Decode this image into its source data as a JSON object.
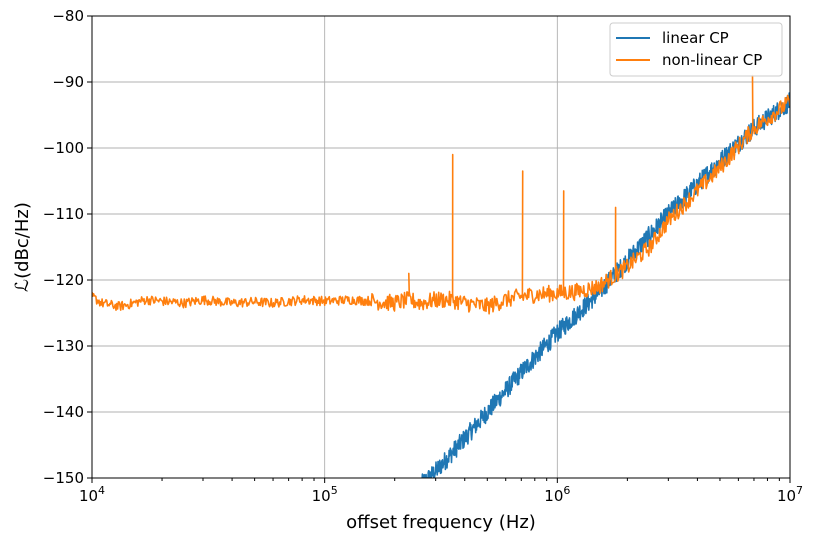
{
  "chart_data": {
    "type": "line",
    "title": "",
    "xlabel": "offset frequency (Hz)",
    "ylabel": "ℒ(dBc/Hz)",
    "xscale": "log",
    "xlim": [
      10000,
      10000000
    ],
    "ylim": [
      -150,
      -80
    ],
    "grid": true,
    "legend_position": "top-right",
    "x_ticks": [
      {
        "value": 10000,
        "label_base": "10",
        "label_exp": "4"
      },
      {
        "value": 100000,
        "label_base": "10",
        "label_exp": "5"
      },
      {
        "value": 1000000,
        "label_base": "10",
        "label_exp": "6"
      },
      {
        "value": 10000000,
        "label_base": "10",
        "label_exp": "7"
      }
    ],
    "y_ticks": [
      {
        "value": -80,
        "label": "−80"
      },
      {
        "value": -90,
        "label": "−90"
      },
      {
        "value": -100,
        "label": "−100"
      },
      {
        "value": -110,
        "label": "−110"
      },
      {
        "value": -120,
        "label": "−120"
      },
      {
        "value": -130,
        "label": "−130"
      },
      {
        "value": -140,
        "label": "−140"
      },
      {
        "value": -150,
        "label": "−150"
      }
    ],
    "series": [
      {
        "name": "linear CP",
        "color": "#1f77b4",
        "noise": 0.9,
        "x": [
          260000,
          300000,
          400000,
          500000,
          700000,
          1000000,
          1500000,
          2000000,
          3000000,
          5000000,
          7000000,
          10000000
        ],
        "y": [
          -151,
          -149,
          -144,
          -140,
          -134,
          -128,
          -122,
          -117,
          -110,
          -102,
          -97,
          -93
        ]
      },
      {
        "name": "non-linear CP",
        "color": "#ff7f0e",
        "noise": 0.8,
        "x": [
          10000,
          11000,
          13000,
          14000,
          17000,
          20000,
          25000,
          30000,
          40000,
          50000,
          60000,
          80000,
          100000,
          130000,
          160000,
          200000,
          230000,
          260000,
          300000,
          350000,
          400000,
          500000,
          600000,
          700000,
          800000,
          1000000,
          1200000,
          1500000,
          2000000,
          2500000,
          3000000,
          5000000,
          7000000,
          10000000
        ],
        "y": [
          -122.5,
          -123.5,
          -124,
          -123.8,
          -123,
          -123.2,
          -123.5,
          -123,
          -123.5,
          -123.3,
          -123.5,
          -123,
          -123.2,
          -123,
          -123.2,
          -123.5,
          -123,
          -123.5,
          -123,
          -123,
          -123.5,
          -124,
          -123,
          -122.5,
          -122.2,
          -122,
          -121.8,
          -121,
          -118,
          -115,
          -111,
          -103,
          -97,
          -93
        ]
      }
    ],
    "spurs": [
      {
        "series": "non-linear CP",
        "x": 230000,
        "y": -119
      },
      {
        "series": "non-linear CP",
        "x": 355000,
        "y": -101
      },
      {
        "series": "non-linear CP",
        "x": 710000,
        "y": -103.5
      },
      {
        "series": "non-linear CP",
        "x": 1065000,
        "y": -106.5
      },
      {
        "series": "non-linear CP",
        "x": 1780000,
        "y": -109
      },
      {
        "series": "non-linear CP",
        "x": 6900000,
        "y": -89
      }
    ]
  }
}
